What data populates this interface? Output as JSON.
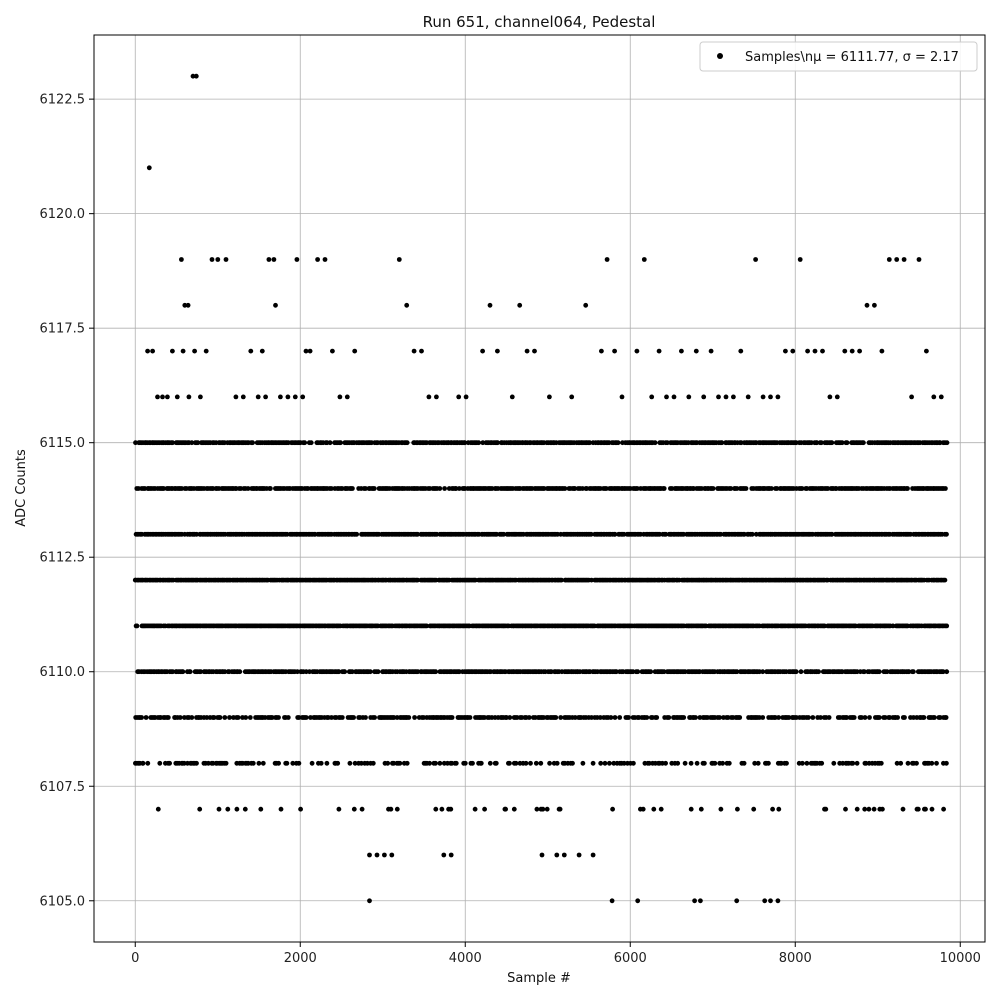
{
  "chart_data": {
    "type": "scatter",
    "title": "Run 651, channel064, Pedestal",
    "xlabel": "Sample #",
    "ylabel": "ADC Counts",
    "xlim": [
      -500,
      10300
    ],
    "ylim": [
      6104.1,
      6123.9
    ],
    "xticks": [
      0,
      2000,
      4000,
      6000,
      8000,
      10000
    ],
    "yticks": [
      6105.0,
      6107.5,
      6110.0,
      6112.5,
      6115.0,
      6117.5,
      6120.0,
      6122.5
    ],
    "xtick_labels": [
      "0",
      "2000",
      "4000",
      "6000",
      "8000",
      "10000"
    ],
    "ytick_labels": [
      "6105.0",
      "6107.5",
      "6110.0",
      "6112.5",
      "6115.0",
      "6117.5",
      "6120.0",
      "6122.5"
    ],
    "grid": true,
    "legend_position": "top-right",
    "marker_color": "#000000",
    "series": [
      {
        "name": "Samples\\nμ = 6111.77, σ = 2.17",
        "legend_label": "Samples\\nμ = 6111.77, σ = 2.17",
        "n_samples": 9840,
        "mean": 6111.77,
        "sigma": 2.17,
        "x": [
          0,
          170,
          560,
          600,
          640,
          700,
          930,
          1000,
          1100,
          1540,
          1620,
          1680,
          1700,
          1960,
          2070,
          2210,
          2300,
          2390,
          2480,
          2570,
          2660,
          3200,
          3290,
          3380,
          3470,
          3650,
          3740,
          3830,
          3920,
          4010,
          4210,
          4300,
          4390,
          4570,
          4660,
          4750,
          4840,
          5020,
          5290,
          5460,
          5650,
          5720,
          5810,
          5900,
          6080,
          6170,
          6260,
          6350,
          6440,
          6530,
          6620,
          6710,
          6800,
          6890,
          6980,
          7070,
          7160,
          7250,
          7340,
          7430,
          7520,
          7610,
          7700,
          7790,
          7880,
          7970,
          8060,
          8150,
          8240,
          8330,
          8420,
          8510,
          8600,
          8690,
          8780,
          8870,
          8960,
          9050,
          9140,
          9230,
          9320,
          9410,
          9500,
          9590,
          9680,
          9770,
          9840,
          30,
          90,
          150,
          210,
          270,
          330,
          390,
          450,
          510,
          580,
          650,
          720,
          790,
          860,
          1220,
          1310,
          1400,
          1490,
          1580,
          1760,
          1850,
          1940,
          2030,
          2120,
          2750,
          2840,
          2930,
          3020,
          3110,
          3560,
          4120,
          4480,
          4930,
          5110,
          5200,
          5380,
          5550,
          740,
          2840,
          5780,
          6090,
          6780,
          6850,
          7290,
          7630,
          7700,
          7790
        ],
        "y": [
          6112,
          6121,
          6119,
          6118,
          6118,
          6123,
          6119,
          6119,
          6119,
          6117,
          6119,
          6119,
          6118,
          6119,
          6117,
          6119,
          6119,
          6117,
          6116,
          6116,
          6117,
          6119,
          6118,
          6117,
          6117,
          6116,
          6106,
          6106,
          6116,
          6116,
          6117,
          6118,
          6117,
          6116,
          6118,
          6117,
          6117,
          6116,
          6116,
          6118,
          6117,
          6119,
          6117,
          6116,
          6117,
          6119,
          6116,
          6117,
          6116,
          6116,
          6117,
          6116,
          6117,
          6116,
          6117,
          6116,
          6116,
          6116,
          6117,
          6116,
          6119,
          6116,
          6116,
          6116,
          6117,
          6117,
          6119,
          6117,
          6117,
          6117,
          6116,
          6116,
          6117,
          6117,
          6117,
          6118,
          6118,
          6117,
          6119,
          6119,
          6119,
          6116,
          6119,
          6117,
          6116,
          6116,
          6115,
          6110,
          6108,
          6117,
          6117,
          6116,
          6116,
          6116,
          6117,
          6116,
          6117,
          6116,
          6117,
          6116,
          6117,
          6116,
          6116,
          6117,
          6116,
          6116,
          6116,
          6116,
          6116,
          6116,
          6117,
          6107,
          6106,
          6106,
          6106,
          6106,
          6116,
          6107,
          6107,
          6106,
          6106,
          6106,
          6106,
          6106,
          6123,
          6105,
          6105,
          6105,
          6105,
          6105,
          6105,
          6105,
          6105,
          6105
        ]
      }
    ]
  }
}
